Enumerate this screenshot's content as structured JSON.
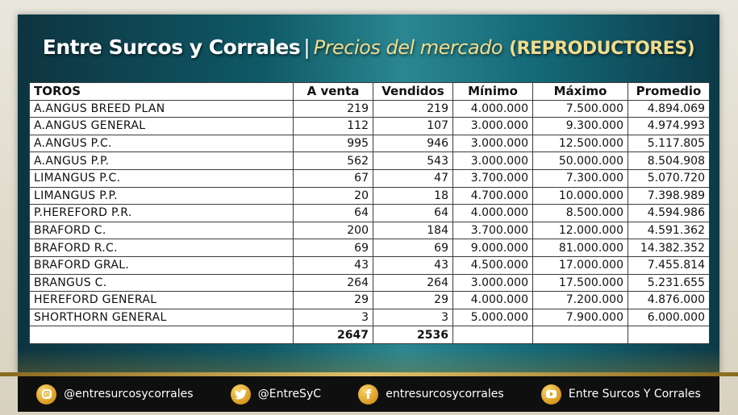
{
  "title": {
    "brand": "Entre Surcos y Corrales",
    "separator": "|",
    "subtitle": "Precios del mercado",
    "category": "(REPRODUCTORES)"
  },
  "table": {
    "headers": [
      "TOROS",
      "A venta",
      "Vendidos",
      "Mínimo",
      "Máximo",
      "Promedio"
    ],
    "rows": [
      [
        "A.ANGUS BREED PLAN",
        "219",
        "219",
        "4.000.000",
        "7.500.000",
        "4.894.069"
      ],
      [
        "A.ANGUS GENERAL",
        "112",
        "107",
        "3.000.000",
        "9.300.000",
        "4.974.993"
      ],
      [
        "A.ANGUS P.C.",
        "995",
        "946",
        "3.000.000",
        "12.500.000",
        "5.117.805"
      ],
      [
        "A.ANGUS P.P.",
        "562",
        "543",
        "3.000.000",
        "50.000.000",
        "8.504.908"
      ],
      [
        "LIMANGUS P.C.",
        "67",
        "47",
        "3.700.000",
        "7.300.000",
        "5.070.720"
      ],
      [
        "LIMANGUS P.P.",
        "20",
        "18",
        "4.700.000",
        "10.000.000",
        "7.398.989"
      ],
      [
        "P.HEREFORD P.R.",
        "64",
        "64",
        "4.000.000",
        "8.500.000",
        "4.594.986"
      ],
      [
        "BRAFORD C.",
        "200",
        "184",
        "3.700.000",
        "12.000.000",
        "4.591.362"
      ],
      [
        "BRAFORD R.C.",
        "69",
        "69",
        "9.000.000",
        "81.000.000",
        "14.382.352"
      ],
      [
        "BRAFORD GRAL.",
        "43",
        "43",
        "4.500.000",
        "17.000.000",
        "7.455.814"
      ],
      [
        "BRANGUS C.",
        "264",
        "264",
        "3.000.000",
        "17.500.000",
        "5.231.655"
      ],
      [
        "HEREFORD GENERAL",
        "29",
        "29",
        "4.000.000",
        "7.200.000",
        "4.876.000"
      ],
      [
        "SHORTHORN GENERAL",
        "3",
        "3",
        "5.000.000",
        "7.900.000",
        "6.000.000"
      ]
    ],
    "totals": [
      "",
      "2647",
      "2536",
      "",
      "",
      ""
    ]
  },
  "footer": {
    "instagram": {
      "icon": "instagram-icon",
      "handle": "@entresurcosycorrales"
    },
    "twitter": {
      "icon": "twitter-icon",
      "handle": "@EntreSyC"
    },
    "facebook": {
      "icon": "facebook-icon",
      "handle": "entresurcosycorrales"
    },
    "youtube": {
      "icon": "youtube-icon",
      "handle": "Entre Surcos Y Corrales"
    }
  },
  "colors": {
    "panel": "#0f5966",
    "gold": "#d99a1f",
    "subtitle_gold": "#f1dc8e",
    "footer": "#0f0f0f"
  }
}
